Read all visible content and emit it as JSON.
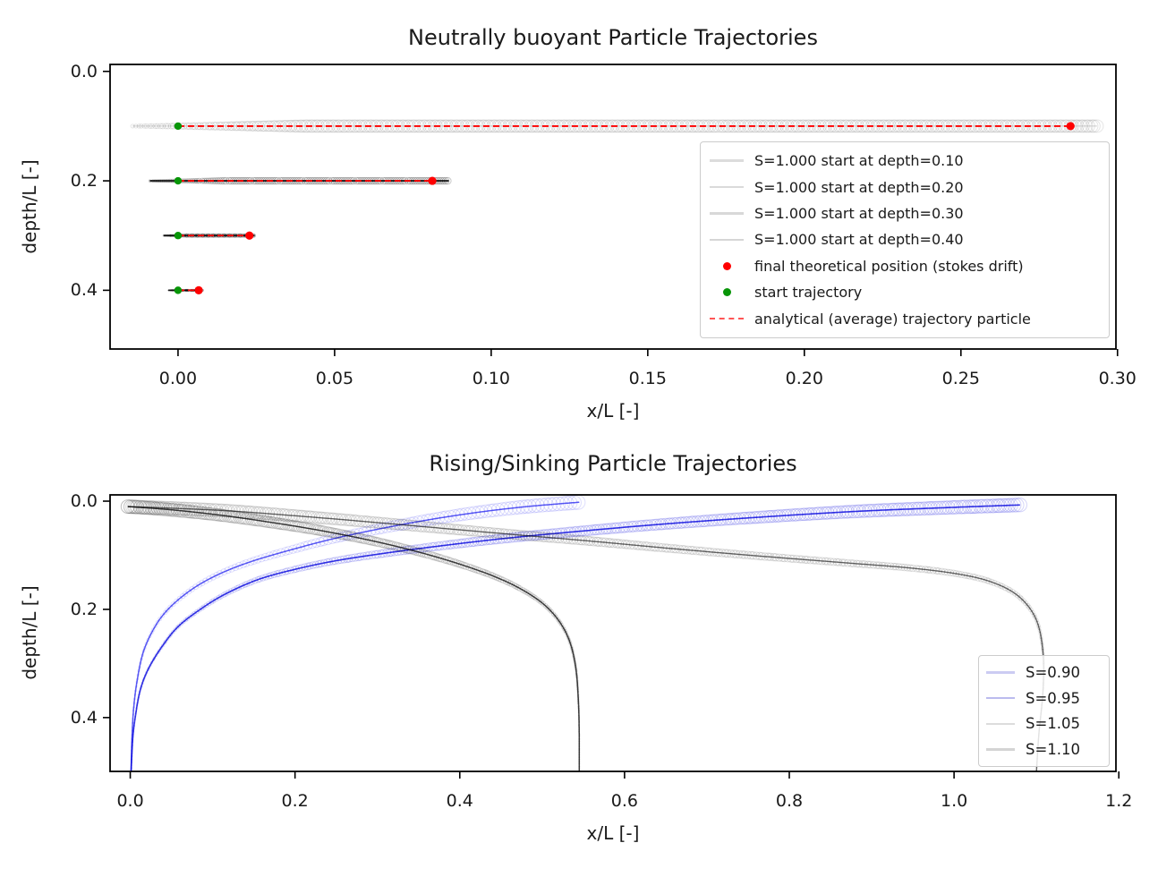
{
  "chart_data": [
    {
      "type": "scatter",
      "title": "Neutrally buoyant Particle Trajectories",
      "xlabel": "x/L [-]",
      "ylabel": "depth/L [-]",
      "xlim": [
        -0.0217,
        0.2995
      ],
      "ylim": [
        -0.0127,
        0.5073
      ],
      "grid": false,
      "xticks": {
        "values": [
          0.0,
          0.05,
          0.1,
          0.15,
          0.2,
          0.25,
          0.3
        ],
        "labels": [
          "0.00",
          "0.05",
          "0.10",
          "0.15",
          "0.20",
          "0.25",
          "0.30"
        ]
      },
      "yticks": {
        "values": [
          0.0,
          0.2,
          0.4
        ],
        "labels": [
          "0.0",
          "0.2",
          "0.4"
        ]
      },
      "tubes": [
        {
          "name": "S=1.000 start at depth=0.10",
          "color": "#000000",
          "opacity": 0.1,
          "spacing": 3.0,
          "r0": 13,
          "decay": 6.3,
          "r_min": 0.45,
          "taper_left": 0.18,
          "center_line_opacity": 0.18,
          "center_line_width": 1.0,
          "points": [
            [
              -0.0145,
              0.1
            ],
            [
              0.2935,
              0.1
            ]
          ]
        },
        {
          "name": "S=1.000 start at depth=0.20",
          "color": "#000000",
          "opacity": 0.22,
          "spacing": 2.5,
          "r0": 13,
          "decay": 6.3,
          "r_min": 0.45,
          "taper_left": 0.25,
          "center_line_opacity": 0.8,
          "center_line_width": 2.2,
          "points": [
            [
              -0.009,
              0.2
            ],
            [
              0.0865,
              0.2
            ]
          ]
        },
        {
          "name": "S=1.000 start at depth=0.30",
          "color": "#000000",
          "opacity": 0.3,
          "spacing": 2.0,
          "r0": 13,
          "decay": 6.3,
          "r_min": 0.45,
          "taper_left": 0.25,
          "center_line_opacity": 0.9,
          "center_line_width": 2.0,
          "points": [
            [
              -0.0046,
              0.3
            ],
            [
              0.0245,
              0.3
            ]
          ]
        },
        {
          "name": "S=1.000 start at depth=0.40",
          "color": "#000000",
          "opacity": 0.4,
          "spacing": 1.5,
          "r0": 13,
          "decay": 6.3,
          "r_min": 0.45,
          "taper_left": 0.2,
          "center_line_opacity": 0.9,
          "center_line_width": 1.8,
          "points": [
            [
              -0.0031,
              0.4
            ],
            [
              0.0078,
              0.4
            ]
          ]
        }
      ],
      "analytical_lines": {
        "name": "analytical (average) trajectory particle",
        "color": "#ff0000",
        "dash": "7,4",
        "width": 1.8,
        "segments": [
          [
            [
              0.0,
              0.1
            ],
            [
              0.285,
              0.1
            ]
          ],
          [
            [
              0.0,
              0.2
            ],
            [
              0.0812,
              0.2
            ]
          ],
          [
            [
              0.0,
              0.3
            ],
            [
              0.0228,
              0.3
            ]
          ],
          [
            [
              0.0,
              0.4
            ],
            [
              0.0066,
              0.4
            ]
          ]
        ]
      },
      "final_positions": {
        "name": "final theoretical position (stokes drift)",
        "color": "#ff0000",
        "r": 4.6,
        "points": [
          [
            0.285,
            0.1
          ],
          [
            0.0812,
            0.2
          ],
          [
            0.0228,
            0.3
          ],
          [
            0.0066,
            0.4
          ]
        ]
      },
      "start_positions": {
        "name": "start trajectory",
        "color": "#089508",
        "r": 4.2,
        "points": [
          [
            0.0,
            0.1
          ],
          [
            0.0,
            0.2
          ],
          [
            0.0,
            0.3
          ],
          [
            0.0,
            0.4
          ]
        ]
      },
      "legend": {
        "position": "center right",
        "entries": [
          {
            "label": "S=1.000 start at depth=0.10",
            "marker": "line",
            "color": "#dcdcdc"
          },
          {
            "label": "S=1.000 start at depth=0.20",
            "marker": "line",
            "color": "#dadada"
          },
          {
            "label": "S=1.000 start at depth=0.30",
            "marker": "line",
            "color": "#d8d8d8"
          },
          {
            "label": "S=1.000 start at depth=0.40",
            "marker": "line",
            "color": "#d6d6d6"
          },
          {
            "label": "final theoretical position (stokes drift)",
            "marker": "dot",
            "color": "#ff0000"
          },
          {
            "label": "start trajectory",
            "marker": "dot",
            "color": "#089508"
          },
          {
            "label": "analytical (average) trajectory particle",
            "marker": "dashes",
            "color": "#ff5555"
          }
        ]
      }
    },
    {
      "type": "scatter",
      "title": "Rising/Sinking Particle Trajectories",
      "xlabel": "x/L [-]",
      "ylabel": "depth/L [-]",
      "xlim": [
        -0.0245,
        1.1965
      ],
      "ylim": [
        -0.0116,
        0.4995
      ],
      "grid": false,
      "xticks": {
        "values": [
          0.0,
          0.2,
          0.4,
          0.6,
          0.8,
          1.0,
          1.2
        ],
        "labels": [
          "0.0",
          "0.2",
          "0.4",
          "0.6",
          "0.8",
          "1.0",
          "1.2"
        ]
      },
      "yticks": {
        "values": [
          0.0,
          0.2,
          0.4
        ],
        "labels": [
          "0.0",
          "0.2",
          "0.4"
        ]
      },
      "tubes": [
        {
          "name": "S=0.90",
          "color": "#0000ee",
          "opacity": 0.13,
          "spacing": 4.5,
          "r0": 8,
          "decay": 6.3,
          "r_min": 0.45,
          "taper_left": 0,
          "center_line_opacity": 0.65,
          "center_line_width": 1.5,
          "points": [
            [
              0.001,
              0.5
            ],
            [
              0.002,
              0.44
            ],
            [
              0.004,
              0.385
            ],
            [
              0.008,
              0.335
            ],
            [
              0.015,
              0.283
            ],
            [
              0.026,
              0.243
            ],
            [
              0.04,
              0.21
            ],
            [
              0.06,
              0.18
            ],
            [
              0.085,
              0.153
            ],
            [
              0.115,
              0.13
            ],
            [
              0.15,
              0.11
            ],
            [
              0.195,
              0.09
            ],
            [
              0.245,
              0.07
            ],
            [
              0.3,
              0.052
            ],
            [
              0.36,
              0.035
            ],
            [
              0.42,
              0.021
            ],
            [
              0.475,
              0.011
            ],
            [
              0.52,
              0.005
            ],
            [
              0.545,
              0.002
            ]
          ]
        },
        {
          "name": "S=0.95",
          "color": "#0000dd",
          "opacity": 0.17,
          "spacing": 3.2,
          "r0": 8,
          "decay": 6.3,
          "r_min": 0.45,
          "taper_left": 0,
          "center_line_opacity": 0.8,
          "center_line_width": 1.6,
          "points": [
            [
              0.001,
              0.5
            ],
            [
              0.003,
              0.44
            ],
            [
              0.006,
              0.4
            ],
            [
              0.012,
              0.35
            ],
            [
              0.022,
              0.31
            ],
            [
              0.038,
              0.27
            ],
            [
              0.058,
              0.232
            ],
            [
              0.085,
              0.2
            ],
            [
              0.115,
              0.172
            ],
            [
              0.155,
              0.145
            ],
            [
              0.2,
              0.126
            ],
            [
              0.25,
              0.11
            ],
            [
              0.31,
              0.096
            ],
            [
              0.38,
              0.082
            ],
            [
              0.46,
              0.068
            ],
            [
              0.55,
              0.055
            ],
            [
              0.65,
              0.042
            ],
            [
              0.76,
              0.03
            ],
            [
              0.88,
              0.019
            ],
            [
              0.99,
              0.012
            ],
            [
              1.08,
              0.007
            ]
          ]
        },
        {
          "name": "S=1.05",
          "color": "#000000",
          "opacity": 0.12,
          "spacing": 3.2,
          "r0": 8,
          "decay": 6.3,
          "r_min": 0.45,
          "taper_left": 0,
          "center_line_opacity": 0.6,
          "center_line_width": 1.4,
          "points": [
            [
              -0.003,
              0.01
            ],
            [
              0.05,
              0.013
            ],
            [
              0.12,
              0.018
            ],
            [
              0.2,
              0.027
            ],
            [
              0.28,
              0.037
            ],
            [
              0.37,
              0.049
            ],
            [
              0.46,
              0.061
            ],
            [
              0.56,
              0.074
            ],
            [
              0.66,
              0.088
            ],
            [
              0.76,
              0.101
            ],
            [
              0.86,
              0.113
            ],
            [
              0.95,
              0.124
            ],
            [
              1.01,
              0.136
            ],
            [
              1.05,
              0.152
            ],
            [
              1.08,
              0.178
            ],
            [
              1.1,
              0.22
            ],
            [
              1.108,
              0.28
            ],
            [
              1.108,
              0.35
            ],
            [
              1.103,
              0.43
            ],
            [
              1.1,
              0.5
            ]
          ]
        },
        {
          "name": "S=1.10",
          "color": "#000000",
          "opacity": 0.15,
          "spacing": 2.6,
          "r0": 8,
          "decay": 6.3,
          "r_min": 0.45,
          "taper_left": 0,
          "center_line_opacity": 0.75,
          "center_line_width": 1.5,
          "points": [
            [
              -0.003,
              0.01
            ],
            [
              0.05,
              0.016
            ],
            [
              0.11,
              0.026
            ],
            [
              0.17,
              0.039
            ],
            [
              0.23,
              0.054
            ],
            [
              0.29,
              0.072
            ],
            [
              0.345,
              0.092
            ],
            [
              0.395,
              0.114
            ],
            [
              0.44,
              0.138
            ],
            [
              0.475,
              0.163
            ],
            [
              0.503,
              0.192
            ],
            [
              0.522,
              0.225
            ],
            [
              0.534,
              0.262
            ],
            [
              0.541,
              0.31
            ],
            [
              0.544,
              0.37
            ],
            [
              0.545,
              0.43
            ],
            [
              0.545,
              0.5
            ]
          ]
        }
      ],
      "legend": {
        "position": "lower right",
        "entries": [
          {
            "label": "S=0.90",
            "marker": "line",
            "color": "#ccccf2"
          },
          {
            "label": "S=0.95",
            "marker": "line",
            "color": "#bbbbee"
          },
          {
            "label": "S=1.05",
            "marker": "line",
            "color": "#dcdcdc"
          },
          {
            "label": "S=1.10",
            "marker": "line",
            "color": "#d4d4d4"
          }
        ]
      }
    }
  ]
}
